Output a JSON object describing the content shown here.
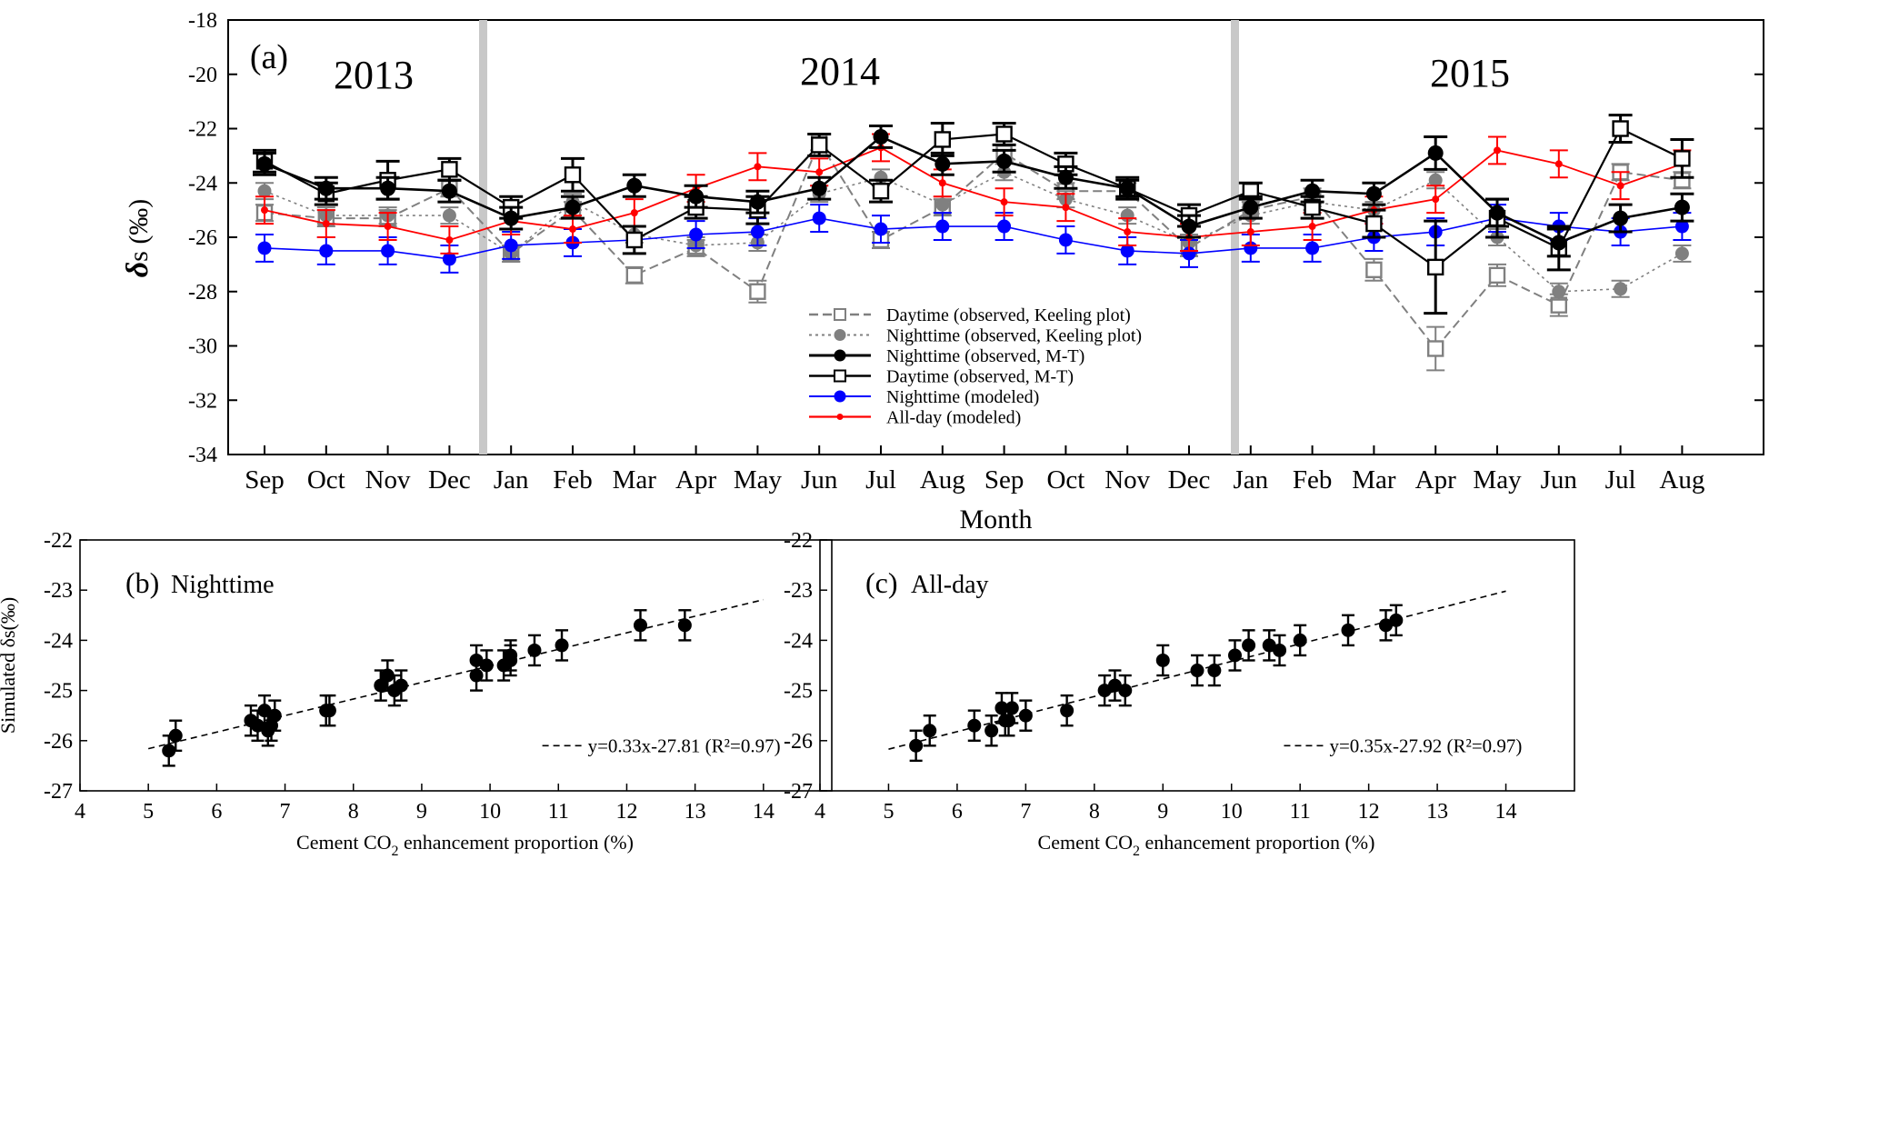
{
  "chart_data": [
    {
      "panel": "(a)",
      "type": "line",
      "ylabel_symbol": "δ",
      "ylabel_rest": "s (‰)",
      "xlabel": "Month",
      "ylim": [
        -34,
        -18
      ],
      "yticks": [
        -18,
        -20,
        -22,
        -24,
        -26,
        -28,
        -30,
        -32,
        -34
      ],
      "years": [
        "2013",
        "2014",
        "2015"
      ],
      "categories": [
        "Sep",
        "Oct",
        "Nov",
        "Dec",
        "Jan",
        "Feb",
        "Mar",
        "Apr",
        "May",
        "Jun",
        "Jul",
        "Aug",
        "Sep",
        "Oct",
        "Nov",
        "Dec",
        "Jan",
        "Feb",
        "Mar",
        "Apr",
        "May",
        "Jun",
        "Jul",
        "Aug"
      ],
      "series": [
        {
          "name": "Daytime (observed, Keeling plot)",
          "color": "#808080",
          "marker": "open-square",
          "values": [
            -25.1,
            -25.3,
            -25.3,
            -24.2,
            -26.6,
            -25.0,
            -27.4,
            -26.4,
            -28.0,
            -22.5,
            -26.1,
            -24.9,
            -22.9,
            -24.3,
            -24.3,
            -26.4,
            -25.0,
            -24.5,
            -27.2,
            -30.1,
            -27.4,
            -28.5,
            -23.6,
            -23.9
          ],
          "errors": [
            0.3,
            0.3,
            0.3,
            0.3,
            0.3,
            0.3,
            0.3,
            0.3,
            0.4,
            0.3,
            0.3,
            0.3,
            0.3,
            0.3,
            0.3,
            0.3,
            0.3,
            0.3,
            0.4,
            0.8,
            0.4,
            0.4,
            0.3,
            0.3
          ]
        },
        {
          "name": "Nighttime (observed, Keeling plot)",
          "color": "#808080",
          "marker": "filled-circle",
          "values": [
            -24.3,
            -25.2,
            -25.2,
            -25.2,
            -26.6,
            -24.7,
            -25.9,
            -26.3,
            -26.2,
            -24.4,
            -23.8,
            -24.8,
            -23.6,
            -24.6,
            -25.2,
            -26.2,
            -25.2,
            -24.7,
            -25.0,
            -23.9,
            -26.0,
            -28.0,
            -27.9,
            -26.6
          ],
          "errors": [
            0.3,
            0.3,
            0.3,
            0.3,
            0.3,
            0.3,
            0.3,
            0.3,
            0.3,
            0.3,
            0.3,
            0.3,
            0.3,
            0.3,
            0.3,
            0.3,
            0.3,
            0.3,
            0.3,
            0.3,
            0.3,
            0.3,
            0.3,
            0.3
          ]
        },
        {
          "name": "Nighttime (observed, M-T)",
          "color": "#000000",
          "marker": "filled-circle",
          "values": [
            -23.3,
            -24.2,
            -24.2,
            -24.3,
            -25.3,
            -24.9,
            -24.1,
            -24.5,
            -24.7,
            -24.2,
            -22.3,
            -23.3,
            -23.2,
            -23.8,
            -24.2,
            -25.6,
            -24.9,
            -24.3,
            -24.4,
            -22.9,
            -25.1,
            -26.2,
            -25.3,
            -24.9
          ],
          "errors": [
            0.4,
            0.4,
            0.4,
            0.4,
            0.4,
            0.4,
            0.4,
            0.4,
            0.4,
            0.4,
            0.4,
            0.4,
            0.4,
            0.4,
            0.4,
            0.4,
            0.4,
            0.4,
            0.4,
            0.6,
            0.5,
            0.5,
            0.5,
            0.5
          ]
        },
        {
          "name": "Daytime (observed, M-T)",
          "color": "#000000",
          "marker": "open-square",
          "values": [
            -23.2,
            -24.4,
            -23.9,
            -23.5,
            -24.9,
            -23.7,
            -26.1,
            -24.9,
            -25.0,
            -22.6,
            -24.3,
            -22.4,
            -22.2,
            -23.3,
            -24.2,
            -25.2,
            -24.3,
            -24.9,
            -25.5,
            -27.1,
            -25.3,
            -26.4,
            -22.0,
            -23.1
          ],
          "errors": [
            0.4,
            0.4,
            0.7,
            0.4,
            0.4,
            0.6,
            0.5,
            0.4,
            0.5,
            0.4,
            0.4,
            0.6,
            0.4,
            0.4,
            0.3,
            0.4,
            0.3,
            0.4,
            0.5,
            1.7,
            0.7,
            0.8,
            0.5,
            0.7
          ]
        },
        {
          "name": "Nighttime (modeled)",
          "color": "#0000ff",
          "marker": "filled-circle",
          "values": [
            -26.4,
            -26.5,
            -26.5,
            -26.8,
            -26.3,
            -26.2,
            -26.1,
            -25.9,
            -25.8,
            -25.3,
            -25.7,
            -25.6,
            -25.6,
            -26.1,
            -26.5,
            -26.6,
            -26.4,
            -26.4,
            -26.0,
            -25.8,
            -25.3,
            -25.6,
            -25.8,
            -25.6
          ],
          "errors": [
            0.5,
            0.5,
            0.5,
            0.5,
            0.5,
            0.5,
            0.5,
            0.5,
            0.5,
            0.5,
            0.5,
            0.5,
            0.5,
            0.5,
            0.5,
            0.5,
            0.5,
            0.5,
            0.5,
            0.5,
            0.5,
            0.5,
            0.5,
            0.5
          ]
        },
        {
          "name": "All-day (modeled)",
          "color": "#ff0000",
          "marker": "small-dot",
          "values": [
            -25.0,
            -25.5,
            -25.6,
            -26.1,
            -25.4,
            -25.7,
            -25.1,
            -24.2,
            -23.4,
            -23.6,
            -22.7,
            -24.0,
            -24.7,
            -24.9,
            -25.8,
            -26.0,
            -25.8,
            -25.6,
            -25.0,
            -24.6,
            -22.8,
            -23.3,
            -24.1,
            -23.3
          ],
          "errors": [
            0.5,
            0.5,
            0.5,
            0.5,
            0.5,
            0.5,
            0.5,
            0.5,
            0.5,
            0.5,
            0.5,
            0.5,
            0.5,
            0.5,
            0.5,
            0.5,
            0.5,
            0.5,
            0.5,
            0.5,
            0.5,
            0.5,
            0.5,
            0.5
          ]
        }
      ]
    },
    {
      "panel": "(b)",
      "subtitle": "Nighttime",
      "type": "scatter",
      "xlabel": "Cement CO2 enhancement proportion (%)",
      "ylabel": "Simulated δs(‰)",
      "xlim": [
        4,
        15
      ],
      "ylim": [
        -27,
        -22
      ],
      "xticks": [
        4,
        5,
        6,
        7,
        8,
        9,
        10,
        11,
        12,
        13,
        14
      ],
      "yticks": [
        -22,
        -23,
        -24,
        -25,
        -26,
        -27
      ],
      "fit": {
        "label": "y=0.33x-27.81 (R²=0.97)",
        "slope": 0.33,
        "intercept": -27.81,
        "x_range": [
          5,
          14
        ]
      },
      "points": [
        {
          "x": 5.3,
          "y": -26.2,
          "err": 0.3
        },
        {
          "x": 5.4,
          "y": -25.9,
          "err": 0.3
        },
        {
          "x": 6.5,
          "y": -25.6,
          "err": 0.3
        },
        {
          "x": 6.6,
          "y": -25.7,
          "err": 0.3
        },
        {
          "x": 6.7,
          "y": -25.4,
          "err": 0.3
        },
        {
          "x": 6.75,
          "y": -25.8,
          "err": 0.3
        },
        {
          "x": 6.8,
          "y": -25.7,
          "err": 0.3
        },
        {
          "x": 6.85,
          "y": -25.5,
          "err": 0.3
        },
        {
          "x": 7.6,
          "y": -25.4,
          "err": 0.3
        },
        {
          "x": 7.65,
          "y": -25.4,
          "err": 0.3
        },
        {
          "x": 8.4,
          "y": -24.9,
          "err": 0.3
        },
        {
          "x": 8.5,
          "y": -24.7,
          "err": 0.3
        },
        {
          "x": 8.6,
          "y": -25.0,
          "err": 0.3
        },
        {
          "x": 8.7,
          "y": -24.9,
          "err": 0.3
        },
        {
          "x": 9.8,
          "y": -24.7,
          "err": 0.3
        },
        {
          "x": 9.8,
          "y": -24.4,
          "err": 0.3
        },
        {
          "x": 9.95,
          "y": -24.5,
          "err": 0.3
        },
        {
          "x": 10.2,
          "y": -24.5,
          "err": 0.3
        },
        {
          "x": 10.3,
          "y": -24.4,
          "err": 0.3
        },
        {
          "x": 10.3,
          "y": -24.3,
          "err": 0.3
        },
        {
          "x": 10.65,
          "y": -24.2,
          "err": 0.3
        },
        {
          "x": 11.05,
          "y": -24.1,
          "err": 0.3
        },
        {
          "x": 12.2,
          "y": -23.7,
          "err": 0.3
        },
        {
          "x": 12.85,
          "y": -23.7,
          "err": 0.3
        }
      ]
    },
    {
      "panel": "(c)",
      "subtitle": "All-day",
      "type": "scatter",
      "xlabel": "Cement CO2 enhancement proportion (%)",
      "xlim": [
        4,
        15
      ],
      "ylim": [
        -27,
        -22
      ],
      "xticks": [
        4,
        5,
        6,
        7,
        8,
        9,
        10,
        11,
        12,
        13,
        14
      ],
      "yticks": [
        -22,
        -23,
        -24,
        -25,
        -26,
        -27
      ],
      "fit": {
        "label": "y=0.35x-27.92 (R²=0.97)",
        "slope": 0.35,
        "intercept": -27.92,
        "x_range": [
          5,
          14
        ]
      },
      "points": [
        {
          "x": 5.4,
          "y": -26.1,
          "err": 0.3
        },
        {
          "x": 5.6,
          "y": -25.8,
          "err": 0.3
        },
        {
          "x": 6.25,
          "y": -25.7,
          "err": 0.3
        },
        {
          "x": 6.5,
          "y": -25.8,
          "err": 0.3
        },
        {
          "x": 6.65,
          "y": -25.35,
          "err": 0.3
        },
        {
          "x": 6.7,
          "y": -25.6,
          "err": 0.3
        },
        {
          "x": 6.75,
          "y": -25.6,
          "err": 0.3
        },
        {
          "x": 6.8,
          "y": -25.35,
          "err": 0.3
        },
        {
          "x": 7.0,
          "y": -25.5,
          "err": 0.3
        },
        {
          "x": 7.6,
          "y": -25.4,
          "err": 0.3
        },
        {
          "x": 8.15,
          "y": -25.0,
          "err": 0.3
        },
        {
          "x": 8.3,
          "y": -24.9,
          "err": 0.3
        },
        {
          "x": 8.45,
          "y": -25.0,
          "err": 0.3
        },
        {
          "x": 9.0,
          "y": -24.4,
          "err": 0.3
        },
        {
          "x": 9.5,
          "y": -24.6,
          "err": 0.3
        },
        {
          "x": 9.75,
          "y": -24.6,
          "err": 0.3
        },
        {
          "x": 10.05,
          "y": -24.3,
          "err": 0.3
        },
        {
          "x": 10.25,
          "y": -24.1,
          "err": 0.3
        },
        {
          "x": 10.55,
          "y": -24.1,
          "err": 0.3
        },
        {
          "x": 10.7,
          "y": -24.2,
          "err": 0.3
        },
        {
          "x": 11.0,
          "y": -24.0,
          "err": 0.3
        },
        {
          "x": 11.7,
          "y": -23.8,
          "err": 0.3
        },
        {
          "x": 12.25,
          "y": -23.7,
          "err": 0.3
        },
        {
          "x": 12.4,
          "y": -23.6,
          "err": 0.3
        }
      ]
    }
  ]
}
